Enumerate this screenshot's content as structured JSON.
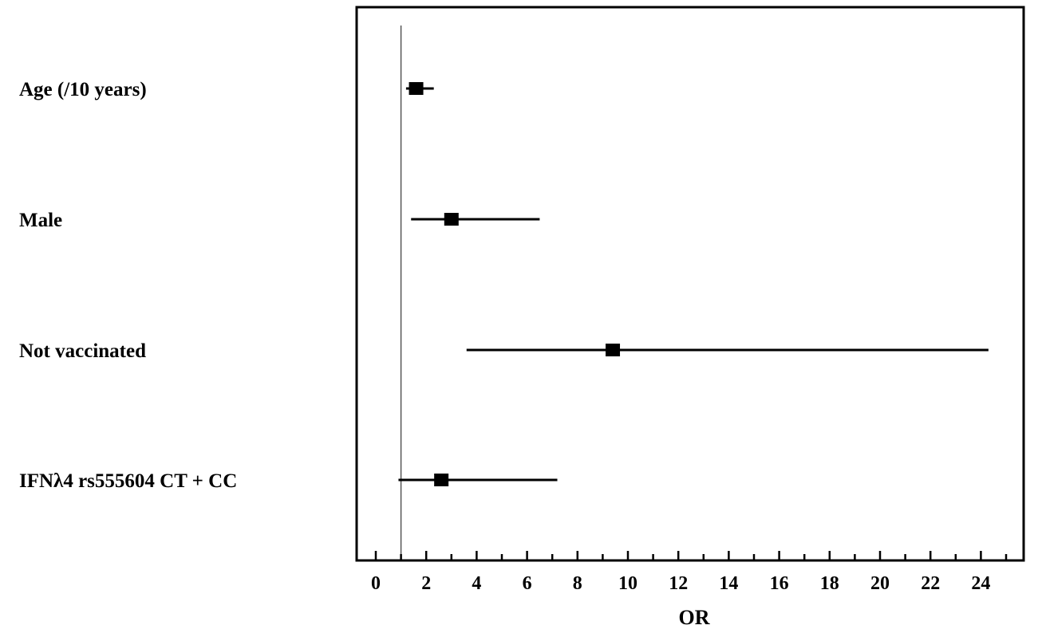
{
  "chart_data": {
    "type": "forest",
    "xlabel": "OR",
    "xlim": [
      0,
      25
    ],
    "x_ticks": [
      0,
      2,
      4,
      6,
      8,
      10,
      12,
      14,
      16,
      18,
      20,
      22,
      24
    ],
    "x_minor_step": 1,
    "reference_line": 1,
    "grid": false,
    "rows": [
      {
        "label": "Age (/10 years)",
        "or": 1.6,
        "ci": [
          1.2,
          2.3
        ]
      },
      {
        "label": "Male",
        "or": 3.0,
        "ci": [
          1.4,
          6.5
        ]
      },
      {
        "label": "Not vaccinated",
        "or": 9.4,
        "ci": [
          3.6,
          24.3
        ]
      },
      {
        "label": "IFNλ4 rs555604 CT + CC",
        "or": 2.6,
        "ci": [
          0.9,
          7.2
        ]
      }
    ],
    "colors": {
      "marker": "#000000",
      "axis": "#000000",
      "reference_line": "#555555"
    }
  }
}
